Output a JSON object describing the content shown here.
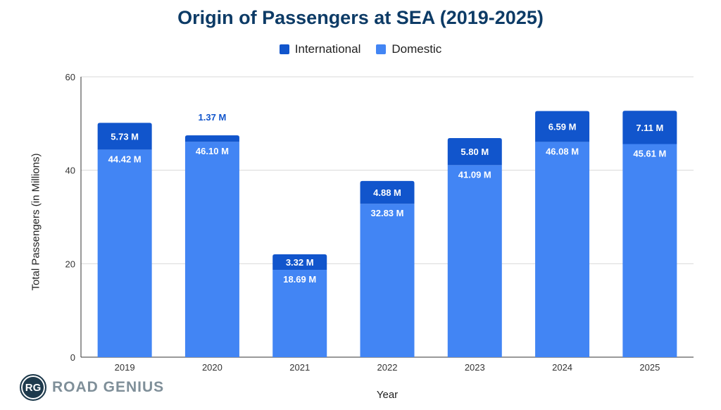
{
  "chart_data": {
    "type": "bar",
    "stacked": true,
    "title": "Origin of Passengers at SEA (2019-2025)",
    "xlabel": "Year",
    "ylabel": "Total Passengers (in Millions)",
    "ylim": [
      0,
      60
    ],
    "yticks": [
      "0",
      "20",
      "40",
      "60"
    ],
    "grid": true,
    "legend_position": "top",
    "categories": [
      "2019",
      "2020",
      "2021",
      "2022",
      "2023",
      "2024",
      "2025"
    ],
    "series": [
      {
        "name": "Domestic",
        "color": "#4285f4",
        "values": [
          44.42,
          46.1,
          18.69,
          32.83,
          41.09,
          46.08,
          45.61
        ],
        "labels": [
          "44.42 M",
          "46.10 M",
          "18.69 M",
          "32.83 M",
          "41.09 M",
          "46.08 M",
          "45.61 M"
        ]
      },
      {
        "name": "International",
        "color": "#1155cc",
        "values": [
          5.73,
          1.37,
          3.32,
          4.88,
          5.8,
          6.59,
          7.11
        ],
        "labels": [
          "5.73 M",
          "1.37 M",
          "3.32 M",
          "4.88 M",
          "5.80 M",
          "6.59 M",
          "7.11 M"
        ]
      }
    ]
  },
  "legend": {
    "international": "International",
    "domestic": "Domestic"
  },
  "logo": {
    "initials": "RG",
    "name": "ROAD GENIUS"
  }
}
